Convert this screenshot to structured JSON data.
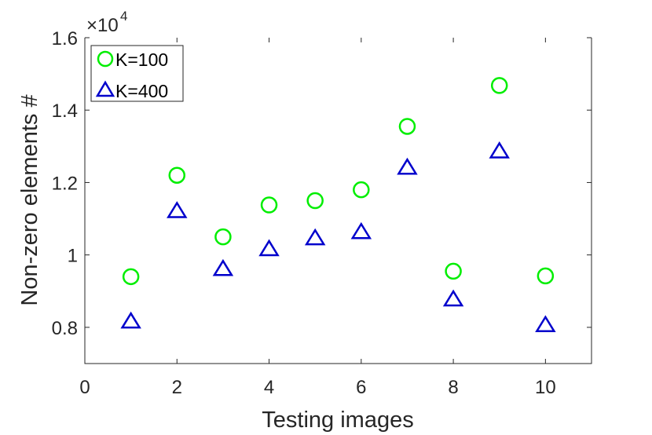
{
  "chart_data": {
    "type": "scatter",
    "xlabel": "Testing images",
    "ylabel": "Non-zero elements #",
    "xlim": [
      0,
      11
    ],
    "ylim": [
      0.7,
      1.6
    ],
    "y_multiplier": "×10",
    "y_multiplier_exponent": "4",
    "xticks": [
      "0",
      "2",
      "4",
      "6",
      "8",
      "10"
    ],
    "yticks": [
      "0.8",
      "1",
      "1.2",
      "1.4",
      "1.6"
    ],
    "grid": false,
    "legend_placement": "top-left",
    "x": [
      1,
      2,
      3,
      4,
      5,
      6,
      7,
      8,
      9,
      10
    ],
    "series": [
      {
        "name": "K=100",
        "marker": "circle",
        "color": "#00ee00",
        "values": [
          0.94,
          1.22,
          1.05,
          1.138,
          1.15,
          1.18,
          1.355,
          0.955,
          1.468,
          0.942
        ]
      },
      {
        "name": "K=400",
        "marker": "triangle",
        "color": "#0000cc",
        "values": [
          0.815,
          1.12,
          0.96,
          1.015,
          1.045,
          1.062,
          1.24,
          0.876,
          1.285,
          0.805
        ]
      }
    ]
  }
}
